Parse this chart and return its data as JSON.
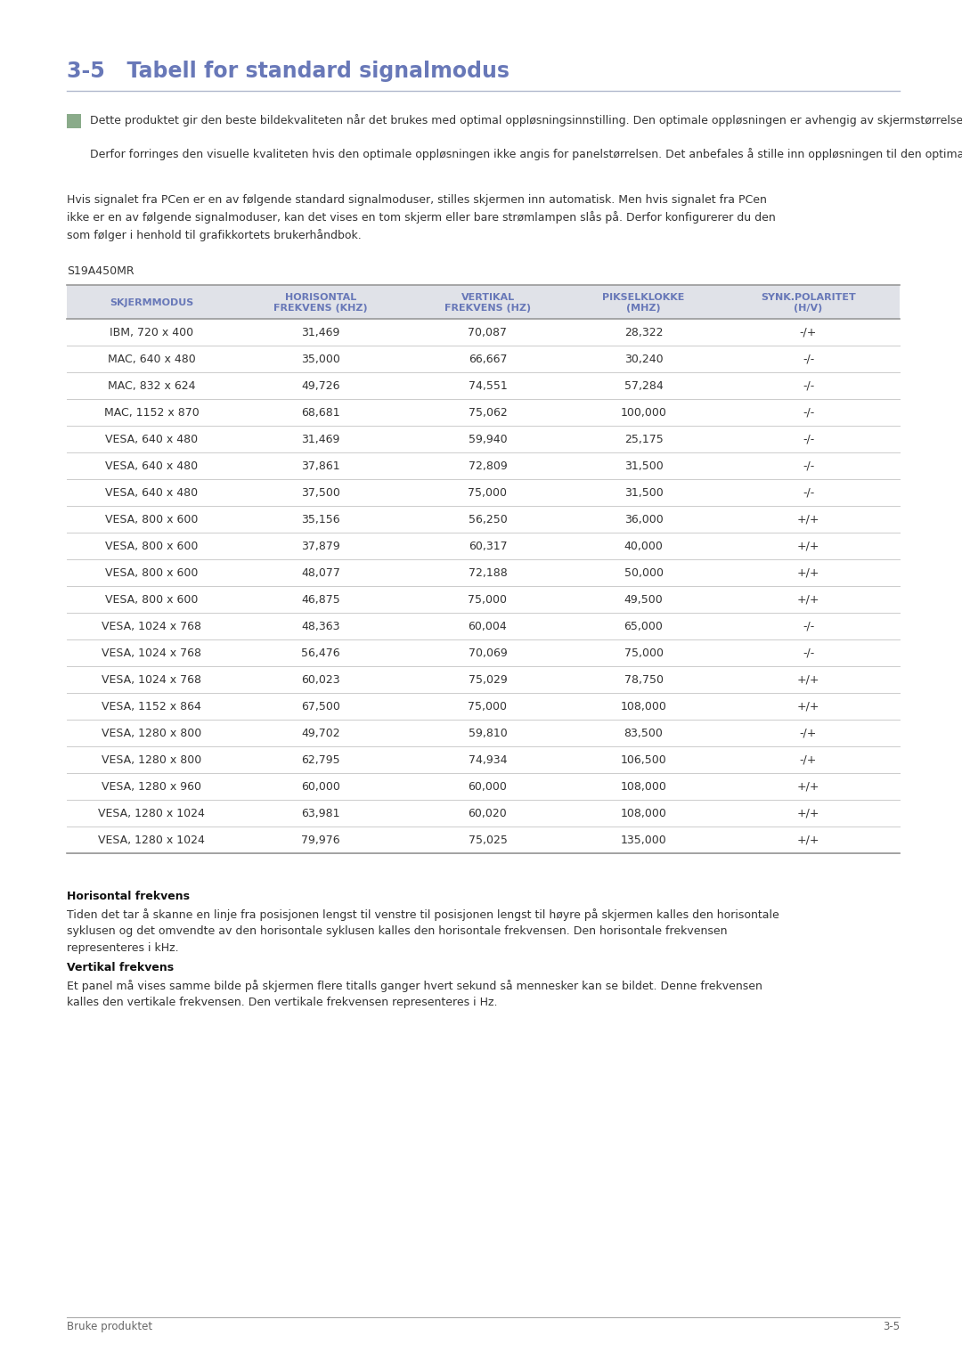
{
  "title": "3-5   Tabell for standard signalmodus",
  "title_color": "#6878b8",
  "bg_color": "#ffffff",
  "note_icon_color": "#8aab8a",
  "note_text1": "Dette produktet gir den beste bildekvaliteten når det brukes med optimal oppløsningsinnstilling. Den optimale oppløsningen er avhengig av skjermstørrelsen.",
  "note_text2": "Derfor forringes den visuelle kvaliteten hvis den optimale oppløsningen ikke angis for panelstørrelsen. Det anbefales å stille inn oppløsningen til den optimale oppløsningen for produktet.",
  "body_text": "Hvis signalet fra PCen er en av følgende standard signalmoduser, stilles skjermen inn automatisk. Men hvis signalet fra PCen\nikke er en av følgende signalmoduser, kan det vises en tom skjerm eller bare strømlampen slås på. Derfor konfigurerer du den\nsom følger i henhold til grafikkortets brukerhåndbok.",
  "table_label": "S19A450MR",
  "col_headers": [
    "SKJERMMODUS",
    "HORISONTAL\nFREKVENS (KHZ)",
    "VERTIKAL\nFREKVENS (HZ)",
    "PIKSELKLOKKE\n(MHZ)",
    "SYNK.POLARITET\n(H/V)"
  ],
  "col_header_color": "#6878b8",
  "header_bg": "#e0e2e8",
  "table_rows": [
    [
      "IBM, 720 x 400",
      "31,469",
      "70,087",
      "28,322",
      "-/+"
    ],
    [
      "MAC, 640 x 480",
      "35,000",
      "66,667",
      "30,240",
      "-/-"
    ],
    [
      "MAC, 832 x 624",
      "49,726",
      "74,551",
      "57,284",
      "-/-"
    ],
    [
      "MAC, 1152 x 870",
      "68,681",
      "75,062",
      "100,000",
      "-/-"
    ],
    [
      "VESA, 640 x 480",
      "31,469",
      "59,940",
      "25,175",
      "-/-"
    ],
    [
      "VESA, 640 x 480",
      "37,861",
      "72,809",
      "31,500",
      "-/-"
    ],
    [
      "VESA, 640 x 480",
      "37,500",
      "75,000",
      "31,500",
      "-/-"
    ],
    [
      "VESA, 800 x 600",
      "35,156",
      "56,250",
      "36,000",
      "+/+"
    ],
    [
      "VESA, 800 x 600",
      "37,879",
      "60,317",
      "40,000",
      "+/+"
    ],
    [
      "VESA, 800 x 600",
      "48,077",
      "72,188",
      "50,000",
      "+/+"
    ],
    [
      "VESA, 800 x 600",
      "46,875",
      "75,000",
      "49,500",
      "+/+"
    ],
    [
      "VESA, 1024 x 768",
      "48,363",
      "60,004",
      "65,000",
      "-/-"
    ],
    [
      "VESA, 1024 x 768",
      "56,476",
      "70,069",
      "75,000",
      "-/-"
    ],
    [
      "VESA, 1024 x 768",
      "60,023",
      "75,029",
      "78,750",
      "+/+"
    ],
    [
      "VESA, 1152 x 864",
      "67,500",
      "75,000",
      "108,000",
      "+/+"
    ],
    [
      "VESA, 1280 x 800",
      "49,702",
      "59,810",
      "83,500",
      "-/+"
    ],
    [
      "VESA, 1280 x 800",
      "62,795",
      "74,934",
      "106,500",
      "-/+"
    ],
    [
      "VESA, 1280 x 960",
      "60,000",
      "60,000",
      "108,000",
      "+/+"
    ],
    [
      "VESA, 1280 x 1024",
      "63,981",
      "60,020",
      "108,000",
      "+/+"
    ],
    [
      "VESA, 1280 x 1024",
      "79,976",
      "75,025",
      "135,000",
      "+/+"
    ]
  ],
  "footer_title1": "Horisontal frekvens",
  "footer_body1": "Tiden det tar å skanne en linje fra posisjonen lengst til venstre til posisjonen lengst til høyre på skjermen kalles den horisontale\nsyklusen og det omvendte av den horisontale syklusen kalles den horisontale frekvensen. Den horisontale frekvensen\nrepresenteres i kHz.",
  "footer_title2": "Vertikal frekvens",
  "footer_body2": "Et panel må vises samme bilde på skjermen flere titalls ganger hvert sekund så mennesker kan se bildet. Denne frekvensen\nkalles den vertikale frekvensen. Den vertikale frekvensen representeres i Hz.",
  "page_footer_left": "Bruke produktet",
  "page_footer_right": "3-5",
  "row_text_color": "#333333",
  "divider_color": "#999999",
  "thin_divider_color": "#cccccc",
  "text_color": "#333333"
}
